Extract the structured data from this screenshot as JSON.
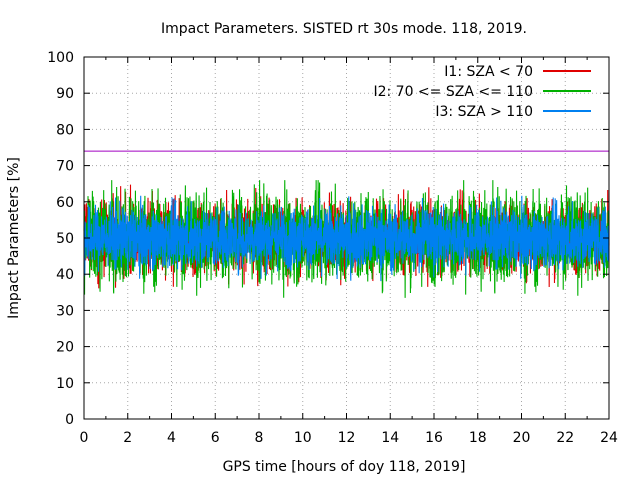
{
  "chart_data": {
    "type": "line",
    "title": "Impact Parameters. SISTED rt 30s mode. 118, 2019.",
    "xlabel": "GPS time [hours of doy 118, 2019]",
    "ylabel": "Impact Parameters [%]",
    "xlim": [
      0,
      24
    ],
    "ylim": [
      0,
      100
    ],
    "x_ticks": [
      "0",
      "2",
      "4",
      "6",
      "8",
      "10",
      "12",
      "14",
      "16",
      "18",
      "20",
      "22",
      "24"
    ],
    "y_ticks": [
      "0",
      "10",
      "20",
      "30",
      "40",
      "50",
      "60",
      "70",
      "80",
      "90",
      "100"
    ],
    "grid": true,
    "legend_position": "top-right",
    "series": [
      {
        "name": "I1: SZA < 70",
        "color": "#e00000",
        "mean": 50,
        "typical_range": [
          42,
          60
        ],
        "min": 35,
        "max": 66
      },
      {
        "name": "I2: 70 <= SZA <= 110",
        "color": "#00b000",
        "mean": 50,
        "typical_range": [
          40,
          62
        ],
        "min": 31,
        "max": 66
      },
      {
        "name": "I3: SZA > 110",
        "color": "#0080f0",
        "mean": 50,
        "typical_range": [
          43,
          58
        ],
        "min": 36,
        "max": 65
      }
    ],
    "reference_line": {
      "y": 74,
      "color": "#a000c0"
    }
  }
}
